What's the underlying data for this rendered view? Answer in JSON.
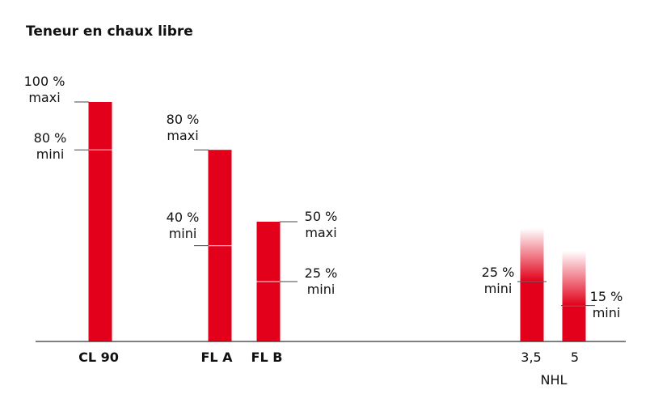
{
  "chart_data": {
    "type": "bar",
    "title": "Teneur en chaux libre",
    "xlabel": "",
    "ylabel": "",
    "ylim": [
      0,
      100
    ],
    "unit": "%",
    "categories": [
      "CL 90",
      "FL A",
      "FL B",
      "3,5",
      "5"
    ],
    "group_label": "NHL",
    "series": [
      {
        "values": [
          100,
          80,
          50,
          25,
          15
        ],
        "ranges": [
          {
            "category": "CL 90",
            "mini": 80,
            "maxi": 100,
            "mini_label": [
              "80 %",
              "mini"
            ],
            "maxi_label": [
              "100 %",
              "maxi"
            ]
          },
          {
            "category": "FL A",
            "mini": 40,
            "maxi": 80,
            "mini_label": [
              "40 %",
              "mini"
            ],
            "maxi_label": [
              "80 %",
              "maxi"
            ]
          },
          {
            "category": "FL B",
            "mini": 25,
            "maxi": 50,
            "mini_label": [
              "25 %",
              "mini"
            ],
            "maxi_label": [
              "50 %",
              "maxi"
            ]
          },
          {
            "category": "3,5",
            "mini": 25,
            "maxi": null,
            "mini_label": [
              "25 %",
              "mini"
            ],
            "maxi_label": null
          },
          {
            "category": "5",
            "mini": 15,
            "maxi": null,
            "mini_label": [
              "15 %",
              "mini"
            ],
            "maxi_label": null
          }
        ]
      }
    ],
    "colors": {
      "bar": "#e2001a",
      "text": "#111111",
      "axis": "#333333",
      "tick": "#444444"
    },
    "grid": false,
    "legend": "none"
  }
}
